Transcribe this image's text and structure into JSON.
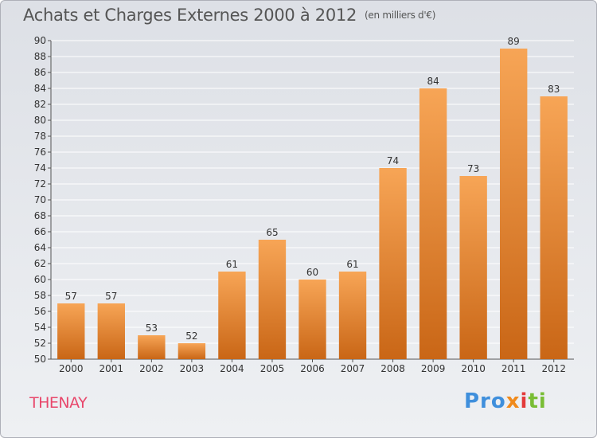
{
  "header": {
    "title": "Achats et Charges Externes 2000 à 2012",
    "subtitle": "(en milliers d'€)"
  },
  "footer": {
    "commune": "THENAY",
    "logo": {
      "p1": "Pro",
      "p2": "x",
      "p3": "i",
      "p4": "ti"
    }
  },
  "colors": {
    "bar_top": "#f7a556",
    "bar_bottom": "#c96616",
    "grid": "#ffffff",
    "axis": "#555555"
  },
  "chart_data": {
    "type": "bar",
    "title": "Achats et Charges Externes 2000 à 2012",
    "subtitle": "(en milliers d'€)",
    "categories": [
      "2000",
      "2001",
      "2002",
      "2003",
      "2004",
      "2005",
      "2006",
      "2007",
      "2008",
      "2009",
      "2010",
      "2011",
      "2012"
    ],
    "values": [
      57,
      57,
      53,
      52,
      61,
      65,
      60,
      61,
      74,
      84,
      73,
      89,
      83
    ],
    "ylim": [
      50,
      90
    ],
    "ytick_step": 2,
    "yticks": [
      "50",
      "52",
      "54",
      "56",
      "58",
      "60",
      "62",
      "64",
      "66",
      "68",
      "70",
      "72",
      "74",
      "76",
      "78",
      "80",
      "82",
      "84",
      "86",
      "88",
      "90"
    ],
    "grid": true,
    "legend": "none"
  }
}
